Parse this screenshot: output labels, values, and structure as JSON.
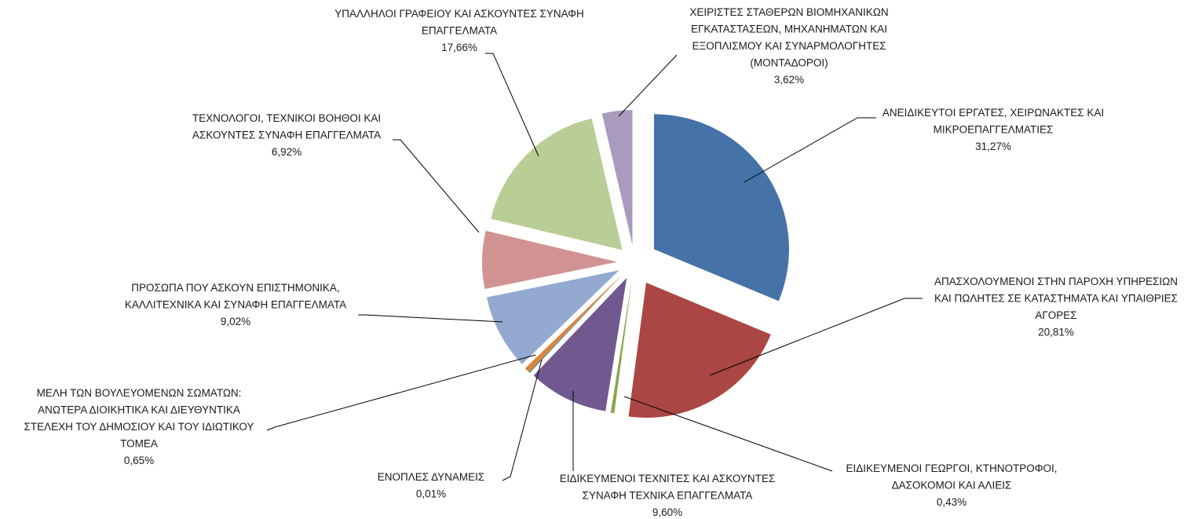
{
  "chart_data": {
    "type": "pie",
    "title": "",
    "exploded": true,
    "start_angle_deg": 0,
    "direction": "clockwise",
    "slices": [
      {
        "label_lines": [
          "ΑΝΕΙΔΙΚΕΥΤΟΙ ΕΡΓΑΤΕΣ, ΧΕΙΡΩΝΑΚΤΕΣ ΚΑΙ",
          "ΜΙΚΡΟΕΠΑΓΓΕΛΜΑΤΙΕΣ"
        ],
        "value": 31.27,
        "value_label": "31,27%",
        "color": "#4572a7"
      },
      {
        "label_lines": [
          "ΑΠΑΣΧΟΛΟΥΜΕΝΟΙ ΣΤΗΝ ΠΑΡΟΧΗ ΥΠΗΡΕΣΙΩΝ",
          "ΚΑΙ ΠΩΛΗΤΕΣ ΣΕ ΚΑΤΑΣΤΗΜΑΤΑ ΚΑΙ ΥΠΑΙΘΡΙΕΣ",
          "ΑΓΟΡΕΣ"
        ],
        "value": 20.81,
        "value_label": "20,81%",
        "color": "#aa4643"
      },
      {
        "label_lines": [
          "ΕΙΔΙΚΕΥΜΕΝΟΙ ΓΕΩΡΓΟΙ,  ΚΤΗΝΟΤΡΟΦΟΙ,",
          "ΔΑΣΟΚΟΜΟΙ ΚΑΙ ΑΛΙΕΙΣ"
        ],
        "value": 0.43,
        "value_label": "0,43%",
        "color": "#89a54e"
      },
      {
        "label_lines": [
          "ΕΙΔΙΚΕΥΜΕΝΟΙ ΤΕΧΝΙΤΕΣ ΚΑΙ ΑΣΚΟΥΝΤΕΣ",
          "ΣΥΝΑΦΗ ΤΕΧΝΙΚΑ ΕΠΑΓΓΕΛΜΑΤΑ"
        ],
        "value": 9.6,
        "value_label": "9,60%",
        "color": "#71588f"
      },
      {
        "label_lines": [
          "ΕΝΟΠΛΕΣ ΔΥΝΑΜΕΙΣ"
        ],
        "value": 0.01,
        "value_label": "0,01%",
        "color": "#4198af"
      },
      {
        "label_lines": [
          "ΜΕΛΗ ΤΩΝ ΒΟΥΛΕΥΟΜΕΝΩΝ ΣΩΜΑΤΩΝ:",
          "ΑΝΩΤΕΡΑ ΔΙΟΙΚΗΤΙΚΑ ΚΑΙ ΔΙΕΥΘΥΝΤΙΚΑ",
          "ΣΤΕΛΕΧΗ ΤΟΥ ΔΗΜΟΣΙΟΥ ΚΑΙ ΤΟΥ ΙΔΙΩΤΙΚΟΥ",
          "ΤΟΜΕΑ"
        ],
        "value": 0.65,
        "value_label": "0,65%",
        "color": "#db843d"
      },
      {
        "label_lines": [
          "ΠΡΟΣΩΠΑ ΠΟΥ ΑΣΚΟΥΝ ΕΠΙΣΤΗΜΟΝΙΚΑ,",
          "ΚΑΛΛΙΤΕΧΝΙΚΑ ΚΑΙ ΣΥΝΑΦΗ ΕΠΑΓΓΕΛΜΑΤΑ"
        ],
        "value": 9.02,
        "value_label": "9,02%",
        "color": "#93a9cf"
      },
      {
        "label_lines": [
          "ΤΕΧΝΟΛΟΓΟΙ, ΤΕΧΝΙΚΟΙ ΒΟΗΘΟΙ ΚΑΙ",
          "ΑΣΚΟΥΝΤΕΣ ΣΥΝΑΦΗ ΕΠΑΓΓΕΛΜΑΤΑ"
        ],
        "value": 6.92,
        "value_label": "6,92%",
        "color": "#d19392"
      },
      {
        "label_lines": [
          "ΥΠΑΛΛΗΛΟΙ ΓΡΑΦΕΙΟΥ ΚΑΙ ΑΣΚΟΥΝΤΕΣ ΣΥΝΑΦΗ",
          "ΕΠΑΓΓΕΛΜΑΤΑ"
        ],
        "value": 17.66,
        "value_label": "17,66%",
        "color": "#b9cd96"
      },
      {
        "label_lines": [
          "ΧΕΙΡΙΣΤΕΣ ΣΤΑΘΕΡΩΝ ΒΙΟΜΗΧΑΝΙΚΩΝ",
          "ΕΓΚΑΤΑΣΤΑΣΕΩΝ, ΜΗΧΑΝΗΜΑΤΩΝ ΚΑΙ",
          "ΕΞΟΠΛΙΣΜΟΥ ΚΑΙ ΣΥΝΑΡΜΟΛΟΓΗΤΕΣ",
          "(ΜΟΝΤΑΔΟΡΟΙ)"
        ],
        "value": 3.62,
        "value_label": "3,62%",
        "color": "#a99bbd"
      }
    ]
  }
}
